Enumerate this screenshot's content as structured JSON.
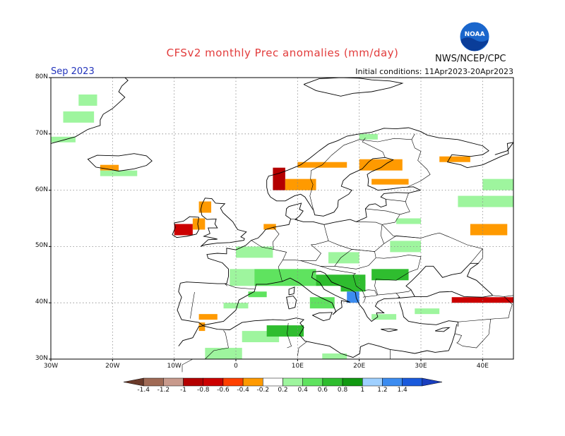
{
  "title": "CFSv2 monthly Prec anomalies (mm/day)",
  "agency": "NWS/NCEP/CPC",
  "logo_text": "NOAA",
  "month": "Sep 2023",
  "initial_conditions": "Initial conditions: 11Apr2023-20Apr2023",
  "map": {
    "lon_range": [
      -30,
      45
    ],
    "lat_range": [
      30,
      80
    ],
    "grid": "dotted",
    "lat_ticks": [
      "30N",
      "40N",
      "50N",
      "60N",
      "70N",
      "80N"
    ],
    "lon_ticks": [
      "30W",
      "20W",
      "10W",
      "0",
      "10E",
      "20E",
      "30E",
      "40E"
    ]
  },
  "colorbar": {
    "labels": [
      "-1.4",
      "-1.2",
      "-1",
      "-0.8",
      "-0.6",
      "-0.4",
      "-0.2",
      "0.2",
      "0.4",
      "0.6",
      "0.8",
      "1",
      "1.2",
      "1.4"
    ],
    "colors": [
      "#6b3a2a",
      "#a06a55",
      "#c89a8c",
      "#b40000",
      "#cc0000",
      "#ff4000",
      "#ff9a00",
      "#ffffff",
      "#9ef59e",
      "#5fe35f",
      "#2fbd2f",
      "#119911",
      "#9fd0ff",
      "#3c8cf0",
      "#1a5adc",
      "#1a3fbf"
    ]
  },
  "anomalies": [
    {
      "lon": -30,
      "lat": 68.5,
      "w": 4,
      "h": 1,
      "v": 0.3
    },
    {
      "lon": -25.5,
      "lat": 75,
      "w": 3,
      "h": 2,
      "v": 0.3
    },
    {
      "lon": -28,
      "lat": 72,
      "w": 5,
      "h": 2,
      "v": 0.3
    },
    {
      "lon": -22,
      "lat": 63.5,
      "w": 3,
      "h": 1,
      "v": -0.3
    },
    {
      "lon": -22,
      "lat": 62.5,
      "w": 6,
      "h": 1,
      "v": 0.3
    },
    {
      "lon": 6,
      "lat": 60,
      "w": 2,
      "h": 4,
      "v": -0.9
    },
    {
      "lon": 8,
      "lat": 60,
      "w": 5,
      "h": 2,
      "v": -0.3
    },
    {
      "lon": 10,
      "lat": 64,
      "w": 8,
      "h": 1,
      "v": -0.3
    },
    {
      "lon": 20,
      "lat": 63.5,
      "w": 7,
      "h": 2,
      "v": -0.3
    },
    {
      "lon": 22,
      "lat": 61,
      "w": 6,
      "h": 1,
      "v": -0.3
    },
    {
      "lon": 33,
      "lat": 65,
      "w": 5,
      "h": 1,
      "v": -0.3
    },
    {
      "lon": -10,
      "lat": 52,
      "w": 3,
      "h": 2,
      "v": -0.7
    },
    {
      "lon": -7,
      "lat": 53,
      "w": 2,
      "h": 2,
      "v": -0.3
    },
    {
      "lon": -6,
      "lat": 56,
      "w": 2,
      "h": 2,
      "v": -0.3
    },
    {
      "lon": 4.5,
      "lat": 53,
      "w": 2,
      "h": 1,
      "v": -0.3
    },
    {
      "lon": 38,
      "lat": 52,
      "w": 6,
      "h": 2,
      "v": -0.3
    },
    {
      "lon": 35,
      "lat": 40,
      "w": 10,
      "h": 1,
      "v": -0.6
    },
    {
      "lon": -6,
      "lat": 37,
      "w": 3,
      "h": 1,
      "v": -0.3
    },
    {
      "lon": -6,
      "lat": 35,
      "w": 1,
      "h": 1.5,
      "v": -0.3
    },
    {
      "lon": 36,
      "lat": 57,
      "w": 9,
      "h": 2,
      "v": 0.3
    },
    {
      "lon": 40,
      "lat": 60,
      "w": 5,
      "h": 2,
      "v": 0.3
    },
    {
      "lon": -1,
      "lat": 43,
      "w": 4,
      "h": 3,
      "v": 0.3
    },
    {
      "lon": 3,
      "lat": 43,
      "w": 10,
      "h": 3,
      "v": 0.5
    },
    {
      "lon": 13,
      "lat": 43,
      "w": 8,
      "h": 2,
      "v": 0.7
    },
    {
      "lon": 17,
      "lat": 42,
      "w": 4,
      "h": 2,
      "v": 0.8
    },
    {
      "lon": 22,
      "lat": 44,
      "w": 6,
      "h": 2,
      "v": 0.8
    },
    {
      "lon": 18,
      "lat": 40,
      "w": 2,
      "h": 2,
      "v": 1.3
    },
    {
      "lon": 12,
      "lat": 39,
      "w": 4,
      "h": 2,
      "v": 0.5
    },
    {
      "lon": 2,
      "lat": 41,
      "w": 3,
      "h": 1,
      "v": 0.6
    },
    {
      "lon": 1,
      "lat": 33,
      "w": 6,
      "h": 2,
      "v": 0.4
    },
    {
      "lon": 5,
      "lat": 34,
      "w": 6,
      "h": 2,
      "v": 0.7
    },
    {
      "lon": -5,
      "lat": 30,
      "w": 6,
      "h": 2,
      "v": 0.3
    },
    {
      "lon": 0,
      "lat": 48,
      "w": 6,
      "h": 2,
      "v": 0.3
    },
    {
      "lon": 15,
      "lat": 47,
      "w": 5,
      "h": 2,
      "v": 0.3
    },
    {
      "lon": 25,
      "lat": 49,
      "w": 5,
      "h": 2,
      "v": 0.3
    },
    {
      "lon": 26,
      "lat": 54,
      "w": 4,
      "h": 1,
      "v": 0.3
    },
    {
      "lon": -2,
      "lat": 39,
      "w": 4,
      "h": 1,
      "v": 0.3
    },
    {
      "lon": 14,
      "lat": 30,
      "w": 4,
      "h": 1,
      "v": 0.3
    },
    {
      "lon": 22,
      "lat": 37,
      "w": 4,
      "h": 1,
      "v": 0.3
    },
    {
      "lon": 29,
      "lat": 38,
      "w": 4,
      "h": 1,
      "v": 0.3
    },
    {
      "lon": 20,
      "lat": 69,
      "w": 3,
      "h": 1,
      "v": 0.3
    }
  ],
  "icons": {
    "logo": "noaa-logo-icon"
  }
}
